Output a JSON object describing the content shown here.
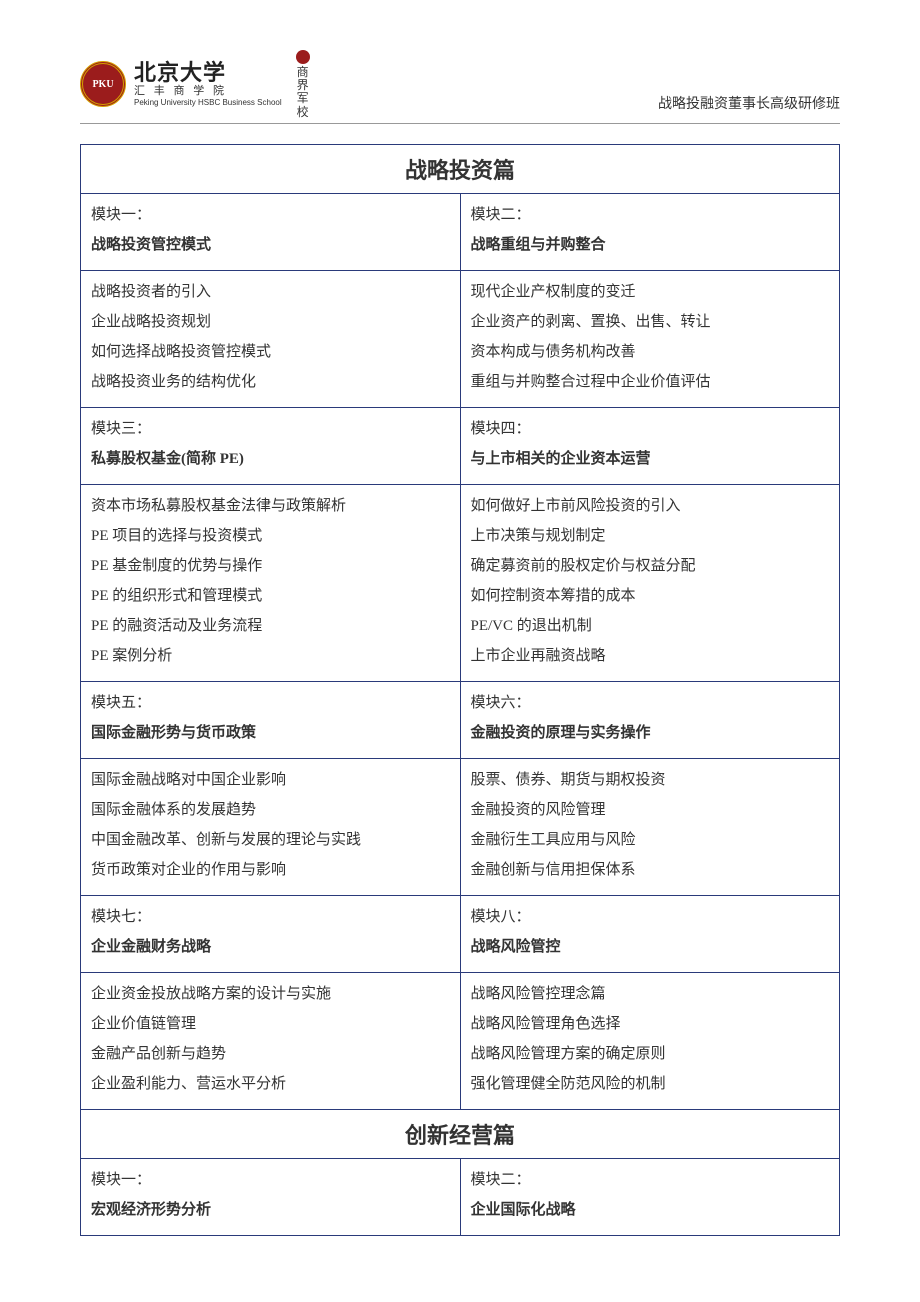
{
  "header": {
    "logo_main": "北京大学",
    "logo_sub": "汇 丰 商 学 院",
    "logo_en": "Peking University HSBC Business School",
    "stamp_line1": "商",
    "stamp_line2": "界",
    "stamp_line3": "军",
    "stamp_line4": "校",
    "right_text": "战略投融资董事长高级研修班"
  },
  "section1": {
    "title": "战略投资篇",
    "m1": {
      "label": "模块一：",
      "title": "战略投资管控模式",
      "i1": "战略投资者的引入",
      "i2": "企业战略投资规划",
      "i3": "如何选择战略投资管控模式",
      "i4": "战略投资业务的结构优化"
    },
    "m2": {
      "label": "模块二：",
      "title": "战略重组与并购整合",
      "i1": "现代企业产权制度的变迁",
      "i2": "企业资产的剥离、置换、出售、转让",
      "i3": "资本构成与债务机构改善",
      "i4": "重组与并购整合过程中企业价值评估"
    },
    "m3": {
      "label": "模块三：",
      "title": "私募股权基金(简称 PE)",
      "i1": "资本市场私募股权基金法律与政策解析",
      "i2": "PE 项目的选择与投资模式",
      "i3": "PE 基金制度的优势与操作",
      "i4": "PE 的组织形式和管理模式",
      "i5": "PE 的融资活动及业务流程",
      "i6": "PE 案例分析"
    },
    "m4": {
      "label": "模块四：",
      "title": "与上市相关的企业资本运营",
      "i1": "如何做好上市前风险投资的引入",
      "i2": "上市决策与规划制定",
      "i3": "确定募资前的股权定价与权益分配",
      "i4": "如何控制资本筹措的成本",
      "i5": "PE/VC 的退出机制",
      "i6": "上市企业再融资战略"
    },
    "m5": {
      "label": "模块五：",
      "title": "国际金融形势与货币政策",
      "i1": "国际金融战略对中国企业影响",
      "i2": "国际金融体系的发展趋势",
      "i3": "中国金融改革、创新与发展的理论与实践",
      "i4": "货币政策对企业的作用与影响"
    },
    "m6": {
      "label": "模块六：",
      "title": "金融投资的原理与实务操作",
      "i1": "股票、债券、期货与期权投资",
      "i2": "金融投资的风险管理",
      "i3": "金融衍生工具应用与风险",
      "i4": "金融创新与信用担保体系"
    },
    "m7": {
      "label": "模块七：",
      "title": "企业金融财务战略",
      "i1": "企业资金投放战略方案的设计与实施",
      "i2": "企业价值链管理",
      "i3": "金融产品创新与趋势",
      "i4": "企业盈利能力、营运水平分析"
    },
    "m8": {
      "label": "模块八：",
      "title": "战略风险管控",
      "i1": "战略风险管控理念篇",
      "i2": "战略风险管理角色选择",
      "i3": "战略风险管理方案的确定原则",
      "i4": "强化管理健全防范风险的机制"
    }
  },
  "section2": {
    "title": "创新经营篇",
    "m1": {
      "label": "模块一：",
      "title": "宏观经济形势分析"
    },
    "m2": {
      "label": "模块二：",
      "title": "企业国际化战略"
    }
  }
}
